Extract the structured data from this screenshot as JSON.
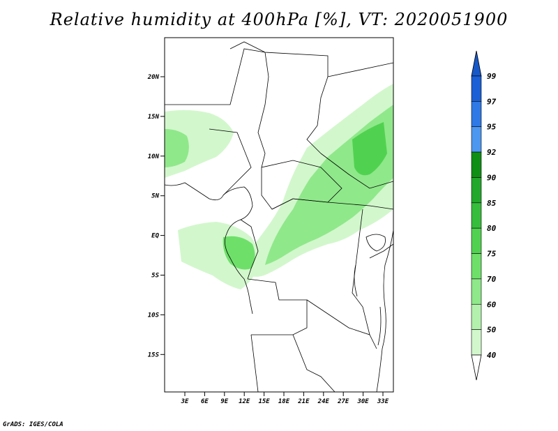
{
  "title": "Relative humidity at 400hPa [%], VT: 2020051900",
  "credit": "GrADS: IGES/COLA",
  "map": {
    "lat_ticks": [
      "20N",
      "15N",
      "10N",
      "5N",
      "EQ",
      "5S",
      "10S",
      "15S"
    ],
    "lon_ticks": [
      "3E",
      "6E",
      "9E",
      "12E",
      "15E",
      "18E",
      "21E",
      "24E",
      "27E",
      "30E",
      "33E"
    ]
  },
  "colorbar": {
    "labels": [
      "99",
      "97",
      "95",
      "92",
      "90",
      "85",
      "80",
      "75",
      "70",
      "60",
      "50",
      "40"
    ],
    "colors": [
      "#1a5fd6",
      "#2f79e6",
      "#4d97f0",
      "#0f8f13",
      "#22a82a",
      "#36bd3c",
      "#50d250",
      "#6ee06a",
      "#8fe88a",
      "#b4f0ad",
      "#d2f7cc",
      "#ecfbe8"
    ],
    "top_arrow_color": "#1658c8",
    "bottom_arrow_color": "#ffffff"
  }
}
